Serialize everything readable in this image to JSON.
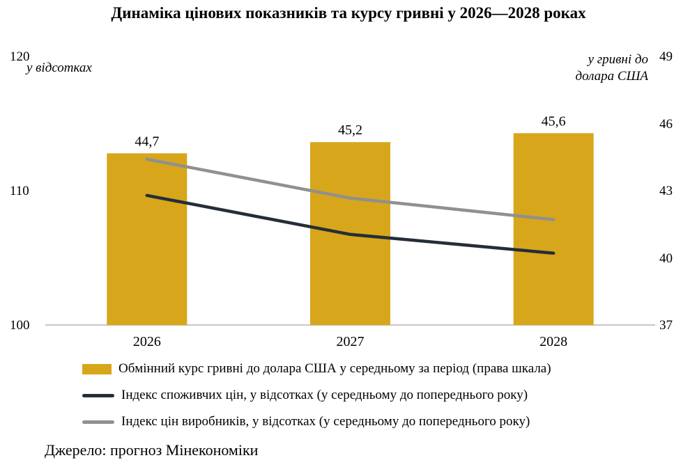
{
  "title": "Динаміка цінових показників та курсу гривні у 2026—2028 роках",
  "left_axis": {
    "caption": "у відсотках",
    "ticks": [
      120,
      110,
      100
    ],
    "min": 100,
    "max": 120
  },
  "right_axis": {
    "caption": "у гривні до\nдолара США",
    "ticks": [
      49,
      46,
      43,
      40,
      37
    ],
    "min": 37,
    "max": 49
  },
  "source": "Джерело: прогноз Мінекономіки",
  "chart_data": {
    "type": "bar",
    "subtype": "combo-bar-line",
    "categories": [
      "2026",
      "2027",
      "2028"
    ],
    "left_range": [
      100,
      120
    ],
    "right_range": [
      37,
      49
    ],
    "grid": false,
    "legend_position": "bottom",
    "series": [
      {
        "name": "Обмінний курс гривні до долара США у середньому за період (права шкала)",
        "type": "bar",
        "axis": "right",
        "values": [
          44.7,
          45.2,
          45.6
        ],
        "labels": [
          "44,7",
          "45,2",
          "45,6"
        ],
        "color": "#D7A61B"
      },
      {
        "name": "Індекс споживчих цін, у відсотках (у середньому до попереднього року)",
        "type": "line",
        "axis": "left",
        "values": [
          109.7,
          106.8,
          105.4
        ],
        "color": "#252D39"
      },
      {
        "name": "Індекс цін виробників, у відсотках (у середньому до попереднього року)",
        "type": "line",
        "axis": "left",
        "values": [
          112.4,
          109.5,
          107.9
        ],
        "color": "#909090"
      }
    ]
  }
}
